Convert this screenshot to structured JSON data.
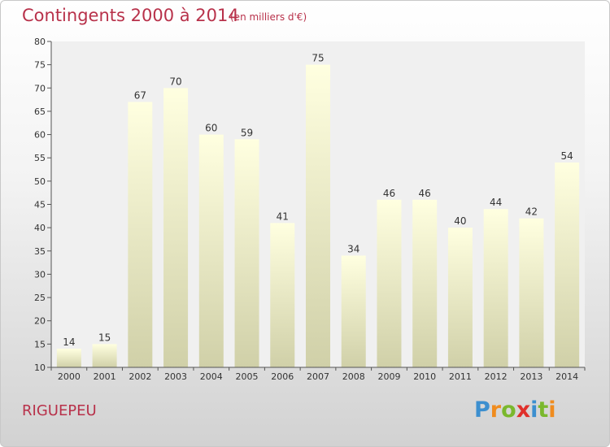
{
  "header": {
    "title": "Contingents 2000 à 2014",
    "subtitle": "(en milliers d'€)"
  },
  "footer": {
    "commune": "RIGUEPEU",
    "logo_letters": [
      {
        "char": "P",
        "color": "#3c8fcf"
      },
      {
        "char": "r",
        "color": "#f08c1e"
      },
      {
        "char": "o",
        "color": "#7ab82d"
      },
      {
        "char": "x",
        "color": "#e0302b"
      },
      {
        "char": "i",
        "color": "#3c8fcf"
      },
      {
        "char": "t",
        "color": "#7ab82d"
      },
      {
        "char": "i",
        "color": "#f08c1e"
      }
    ]
  },
  "chart_data": {
    "type": "bar",
    "categories": [
      "2000",
      "2001",
      "2002",
      "2003",
      "2004",
      "2005",
      "2006",
      "2007",
      "2008",
      "2009",
      "2010",
      "2011",
      "2012",
      "2013",
      "2014"
    ],
    "values": [
      14,
      15,
      67,
      70,
      60,
      59,
      41,
      75,
      34,
      46,
      46,
      40,
      44,
      42,
      54
    ],
    "ylim": [
      10,
      80
    ],
    "yticks": [
      10,
      15,
      20,
      25,
      30,
      35,
      40,
      45,
      50,
      55,
      60,
      65,
      70,
      75,
      80
    ],
    "grid": false,
    "legend": "none",
    "bar_color_top": "#ffffe0",
    "bar_color_bottom": "#d0d0a8",
    "axis_color": "#555555",
    "background_color": "#f0f0f0"
  }
}
